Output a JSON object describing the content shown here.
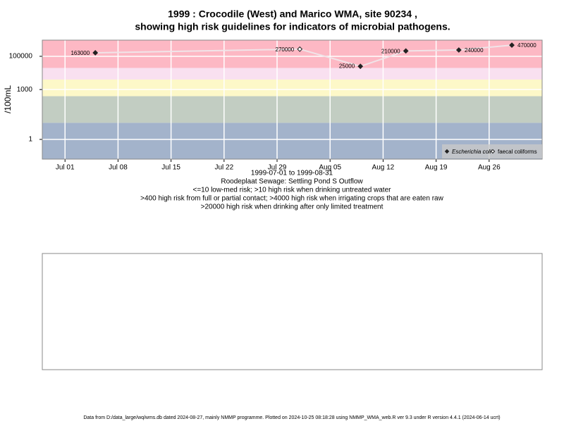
{
  "chart_data": {
    "type": "scatter",
    "title": "1999 : Crocodile (West) and Marico WMA, site 90234 ,",
    "title_line2": "showing high risk guidelines for indicators of microbial pathogens.",
    "y_label": "/100mL",
    "x_label": "1999-07-01 to 1999-08-31",
    "notes": [
      "Roodeplaat Sewage: Settling Pond S Outflow",
      "<=10 low-med risk; >10 high risk when drinking untreated water",
      ">400 high risk from full or partial contact; >4000 high risk when irrigating crops that are eaten raw",
      ">20000 high risk when drinking after only limited treatment"
    ],
    "footer": "Data from D:/data_large/wq/wms.db dated 2024-08-27, mainly NMMP programme. Plotted on 2024-10-25 08:18:28 using NMMP_WMA_web.R ver 9.3 under R version 4.4.1 (2024-06-14 ucrt)",
    "log_y": true,
    "grid": true,
    "ylim": [
      0.065,
      940000
    ],
    "yticks": [
      1,
      1000,
      100000
    ],
    "xlim": [
      "1999-06-28",
      "1999-09-02"
    ],
    "xticks": [
      {
        "value": "1999-07-01",
        "label": "Jul 01"
      },
      {
        "value": "1999-07-08",
        "label": "Jul 08"
      },
      {
        "value": "1999-07-15",
        "label": "Jul 15"
      },
      {
        "value": "1999-07-22",
        "label": "Jul 22"
      },
      {
        "value": "1999-07-29",
        "label": "Jul 29"
      },
      {
        "value": "1999-08-05",
        "label": "Aug 05"
      },
      {
        "value": "1999-08-12",
        "label": "Aug 12"
      },
      {
        "value": "1999-08-19",
        "label": "Aug 19"
      },
      {
        "value": "1999-08-26",
        "label": "Aug 26"
      }
    ],
    "thresholds": [
      10,
      400,
      4000,
      20000
    ],
    "band_colors": [
      "#a3b3cb",
      "#c2cdc2",
      "#fdf8c8",
      "#f9e0f0",
      "#fdb8c4"
    ],
    "line_color": "#f0e4e8",
    "x": [
      "1999-07-05",
      "1999-08-01",
      "1999-08-09",
      "1999-08-15",
      "1999-08-22",
      "1999-08-29"
    ],
    "series": [
      {
        "name": "Escherichia coli",
        "color": "#222222",
        "marker": "filled",
        "values": [
          163000,
          null,
          25000,
          210000,
          240000,
          470000
        ]
      },
      {
        "name": "faecal coliforms",
        "color": "#222222",
        "marker": "open",
        "values": [
          null,
          270000,
          null,
          null,
          null,
          null
        ]
      }
    ]
  }
}
